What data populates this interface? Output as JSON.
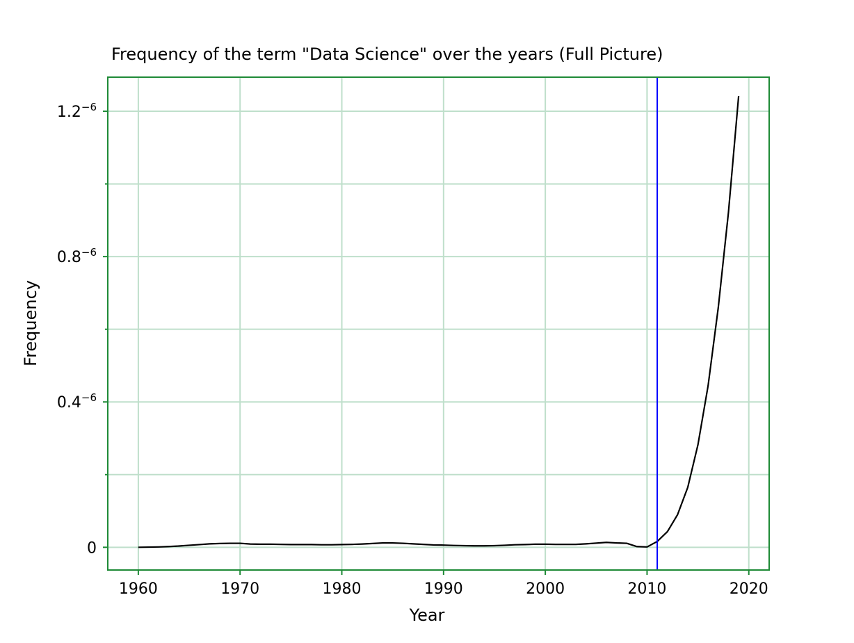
{
  "chart_data": {
    "type": "line",
    "title": "Frequency of the term \"Data Science\" over the years (Full Picture)",
    "xlabel": "Year",
    "ylabel": "Frequency",
    "xlim": [
      1957,
      2022
    ],
    "ylim": [
      -6.25e-08,
      1.2938e-06
    ],
    "x_ticks": [
      {
        "value": 1960,
        "label": "1960"
      },
      {
        "value": 1970,
        "label": "1970"
      },
      {
        "value": 1980,
        "label": "1980"
      },
      {
        "value": 1990,
        "label": "1990"
      },
      {
        "value": 2000,
        "label": "2000"
      },
      {
        "value": 2010,
        "label": "2010"
      },
      {
        "value": 2020,
        "label": "2020"
      }
    ],
    "x_minor_ticks": [
      2010
    ],
    "y_ticks": [
      {
        "value": 0,
        "label": "0"
      },
      {
        "value": 4e-07,
        "label": "0.4"
      },
      {
        "value": 8e-07,
        "label": "0.8"
      },
      {
        "value": 1.2e-06,
        "label": "1.2"
      }
    ],
    "y_tick_exponent": "−6",
    "y_minor_ticks": [
      2e-07,
      6e-07,
      1e-06
    ],
    "grid": true,
    "grid_color": "#bfdfcb",
    "frame_color": "#1e8a36",
    "line_color": "#000000",
    "vline": {
      "x": 2011,
      "color": "#0000ff"
    },
    "series": [
      {
        "x": [
          1960,
          1961,
          1962,
          1963,
          1964,
          1965,
          1966,
          1967,
          1968,
          1969,
          1970,
          1971,
          1972,
          1973,
          1974,
          1975,
          1976,
          1977,
          1978,
          1979,
          1980,
          1981,
          1982,
          1983,
          1984,
          1985,
          1986,
          1987,
          1988,
          1989,
          1990,
          1991,
          1992,
          1993,
          1994,
          1995,
          1996,
          1997,
          1998,
          1999,
          2000,
          2001,
          2002,
          2003,
          2004,
          2005,
          2006,
          2007,
          2008,
          2009,
          2010,
          2011,
          2012,
          2013,
          2014,
          2015,
          2016,
          2017,
          2018,
          2019
        ],
        "values": [
          0.0,
          5e-10,
          1e-09,
          2e-09,
          3.5e-09,
          5.5e-09,
          7.5e-09,
          9.5e-09,
          1.05e-08,
          1.1e-08,
          1.1e-08,
          9e-09,
          8.5e-09,
          8.5e-09,
          8e-09,
          7.5e-09,
          7.5e-09,
          7.5e-09,
          7e-09,
          7e-09,
          7.5e-09,
          8e-09,
          9e-09,
          1.05e-08,
          1.2e-08,
          1.2e-08,
          1.1e-08,
          9.5e-09,
          8e-09,
          6.5e-09,
          6e-09,
          5e-09,
          4.5e-09,
          4e-09,
          4e-09,
          4.5e-09,
          5.5e-09,
          7e-09,
          7.5e-09,
          8.5e-09,
          8.5e-09,
          8e-09,
          8e-09,
          8e-09,
          9.5e-09,
          1.15e-08,
          1.35e-08,
          1.2e-08,
          1.1e-08,
          2e-09,
          1e-09,
          1.6e-08,
          4.3e-08,
          9e-08,
          1.65e-07,
          2.82e-07,
          4.45e-07,
          6.6e-07,
          9.22e-07,
          1.242e-06
        ]
      }
    ]
  }
}
